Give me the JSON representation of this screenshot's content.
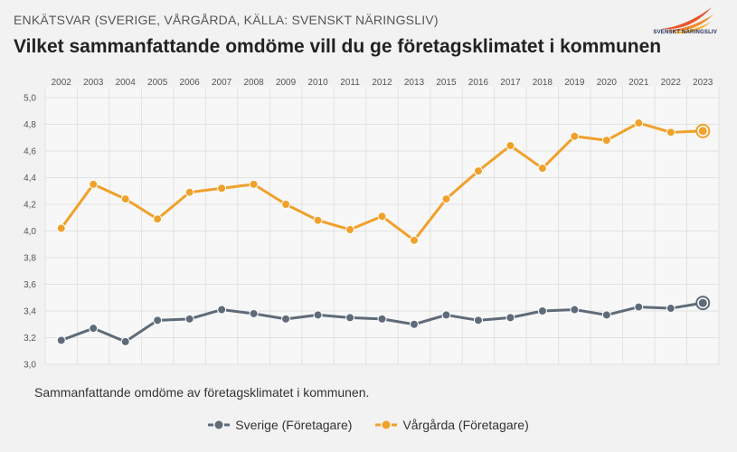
{
  "header": {
    "kicker": "ENKÄTSVAR (SVERIGE, VÅRGÅRDA, KÄLLA: SVENSKT NÄRINGSLIV)",
    "title": "Vilket sammanfattande omdöme vill du ge företagsklimatet i kommunen",
    "logo_text": "SVENSKT NÄRINGSLIV"
  },
  "caption": "Sammanfattande omdöme av företagsklimatet i kommunen.",
  "colors": {
    "sverige": "#5f6b78",
    "vargarda": "#f0a12a",
    "grid": "#e2e2e2",
    "plot_bg": "#f7f7f7"
  },
  "chart_data": {
    "type": "line",
    "x": [
      "2002",
      "2003",
      "2004",
      "2005",
      "2006",
      "2007",
      "2008",
      "2009",
      "2010",
      "2011",
      "2012",
      "2013",
      "2015",
      "2016",
      "2017",
      "2018",
      "2019",
      "2020",
      "2021",
      "2022",
      "2023"
    ],
    "ylim": [
      3.0,
      5.0
    ],
    "yticks": [
      "3,0",
      "3,2",
      "3,4",
      "3,6",
      "3,8",
      "4,0",
      "4,2",
      "4,4",
      "4,6",
      "4,8",
      "5,0"
    ],
    "grid": true,
    "legend_position": "bottom",
    "series": [
      {
        "name": "Sverige (Företagare)",
        "key": "sverige",
        "values": [
          3.18,
          3.27,
          3.17,
          3.33,
          3.34,
          3.41,
          3.38,
          3.34,
          3.37,
          3.35,
          3.34,
          3.3,
          3.37,
          3.33,
          3.35,
          3.4,
          3.41,
          3.37,
          3.43,
          3.42,
          3.46
        ]
      },
      {
        "name": "Vårgårda (Företagare)",
        "key": "vargarda",
        "values": [
          4.02,
          4.35,
          4.24,
          4.09,
          4.29,
          4.32,
          4.35,
          4.2,
          4.08,
          4.01,
          4.11,
          3.93,
          4.24,
          4.45,
          4.64,
          4.47,
          4.71,
          4.68,
          4.81,
          4.74,
          4.75
        ]
      }
    ]
  }
}
